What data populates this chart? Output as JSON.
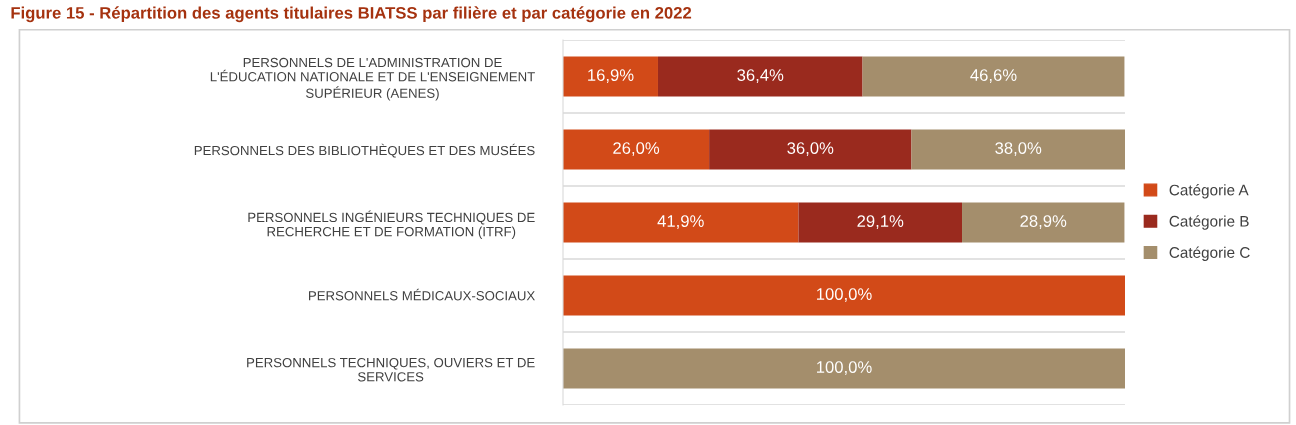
{
  "chart_data": {
    "type": "bar",
    "orientation": "horizontal",
    "stacked": true,
    "title": "Figure 15 - Répartition des agents titulaires BIATSS par filière et par catégorie en 2022",
    "categories": [
      "PERSONNELS DE L'ADMINISTRATION DE\nL'ÉDUCATION NATIONALE ET DE L'ENSEIGNEMENT\nSUPÉRIEUR (AENES)",
      "PERSONNELS DES BIBLIOTHÈQUES ET DES MUSÉES",
      "PERSONNELS INGÉNIEURS TECHNIQUES DE\nRECHERCHE ET DE FORMATION (ITRF)",
      "PERSONNELS MÉDICAUX-SOCIAUX",
      "PERSONNELS TECHNIQUES, OUVIERS ET DE\nSERVICES"
    ],
    "series": [
      {
        "name": "Catégorie A",
        "color": "#d24a18",
        "values": [
          16.9,
          26.0,
          41.9,
          100.0,
          null
        ],
        "value_labels": [
          "16,9%",
          "26,0%",
          "41,9%",
          "100,0%",
          null
        ]
      },
      {
        "name": "Catégorie B",
        "color": "#9a2a1e",
        "values": [
          36.4,
          36.0,
          29.1,
          null,
          null
        ],
        "value_labels": [
          "36,4%",
          "36,0%",
          "29,1%",
          null,
          null
        ]
      },
      {
        "name": "Catégorie C",
        "color": "#a48e6c",
        "values": [
          46.6,
          38.0,
          28.9,
          null,
          100.0
        ],
        "value_labels": [
          "46,6%",
          "38,0%",
          "28,9%",
          null,
          "100,0%"
        ]
      }
    ],
    "xlim": [
      0,
      100
    ],
    "tick_labels": "y",
    "grid": "y",
    "legend": "right"
  }
}
